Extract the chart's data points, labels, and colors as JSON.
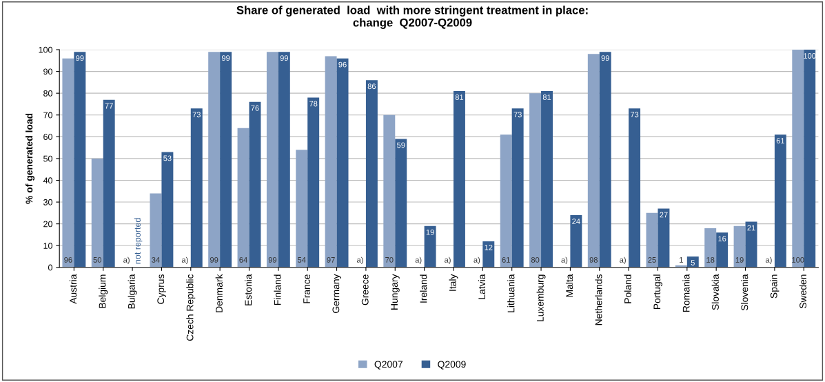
{
  "chart_data": {
    "type": "bar",
    "title": "Share of generated  load  with more stringent treatment in place:\nchange  Q2007-Q2009",
    "ylabel": "% of generated load",
    "categories": [
      "Austria",
      "Belgium",
      "Bulgaria",
      "Cyprus",
      "Czech Republic",
      "Denmark",
      "Estonia",
      "Finland",
      "France",
      "Germany",
      "Greece",
      "Hungary",
      "Ireland",
      "Italy",
      "Latvia",
      "Lithuania",
      "Luxemburg",
      "Malta",
      "Netherlands",
      "Poland",
      "Portugal",
      "Romania",
      "Slovakia",
      "Slovenia",
      "Spain",
      "Sweden"
    ],
    "series": [
      {
        "name": "Q2007",
        "color": "#8da4c6",
        "values": [
          96,
          50,
          null,
          34,
          null,
          99,
          64,
          99,
          54,
          97,
          null,
          70,
          null,
          null,
          null,
          61,
          80,
          null,
          98,
          null,
          25,
          1,
          18,
          19,
          null,
          100
        ],
        "value_labels": [
          "96",
          "50",
          "a)",
          "34",
          "a)",
          "99",
          "64",
          "99",
          "54",
          "97",
          "a)",
          "70",
          "a)",
          "a)",
          "a)",
          "61",
          "80",
          "a)",
          "98",
          "a)",
          "25",
          "1",
          "18",
          "19",
          "a)",
          "100"
        ]
      },
      {
        "name": "Q2009",
        "color": "#365f92",
        "values": [
          99,
          77,
          null,
          53,
          73,
          99,
          76,
          99,
          78,
          96,
          86,
          59,
          19,
          81,
          12,
          73,
          81,
          24,
          99,
          73,
          27,
          5,
          16,
          21,
          61,
          100
        ],
        "value_labels": [
          "99",
          "77",
          "not reported",
          "53",
          "73",
          "99",
          "76",
          "99",
          "78",
          "96",
          "86",
          "59",
          "19",
          "81",
          "12",
          "73",
          "81",
          "24",
          "99",
          "73",
          "27",
          "5",
          "16",
          "21",
          "61",
          "100"
        ]
      }
    ],
    "ylim": [
      0,
      100
    ],
    "yticks": [
      0,
      10,
      20,
      30,
      40,
      50,
      60,
      70,
      80,
      90,
      100
    ],
    "grid": "y",
    "legend": "bottom"
  }
}
